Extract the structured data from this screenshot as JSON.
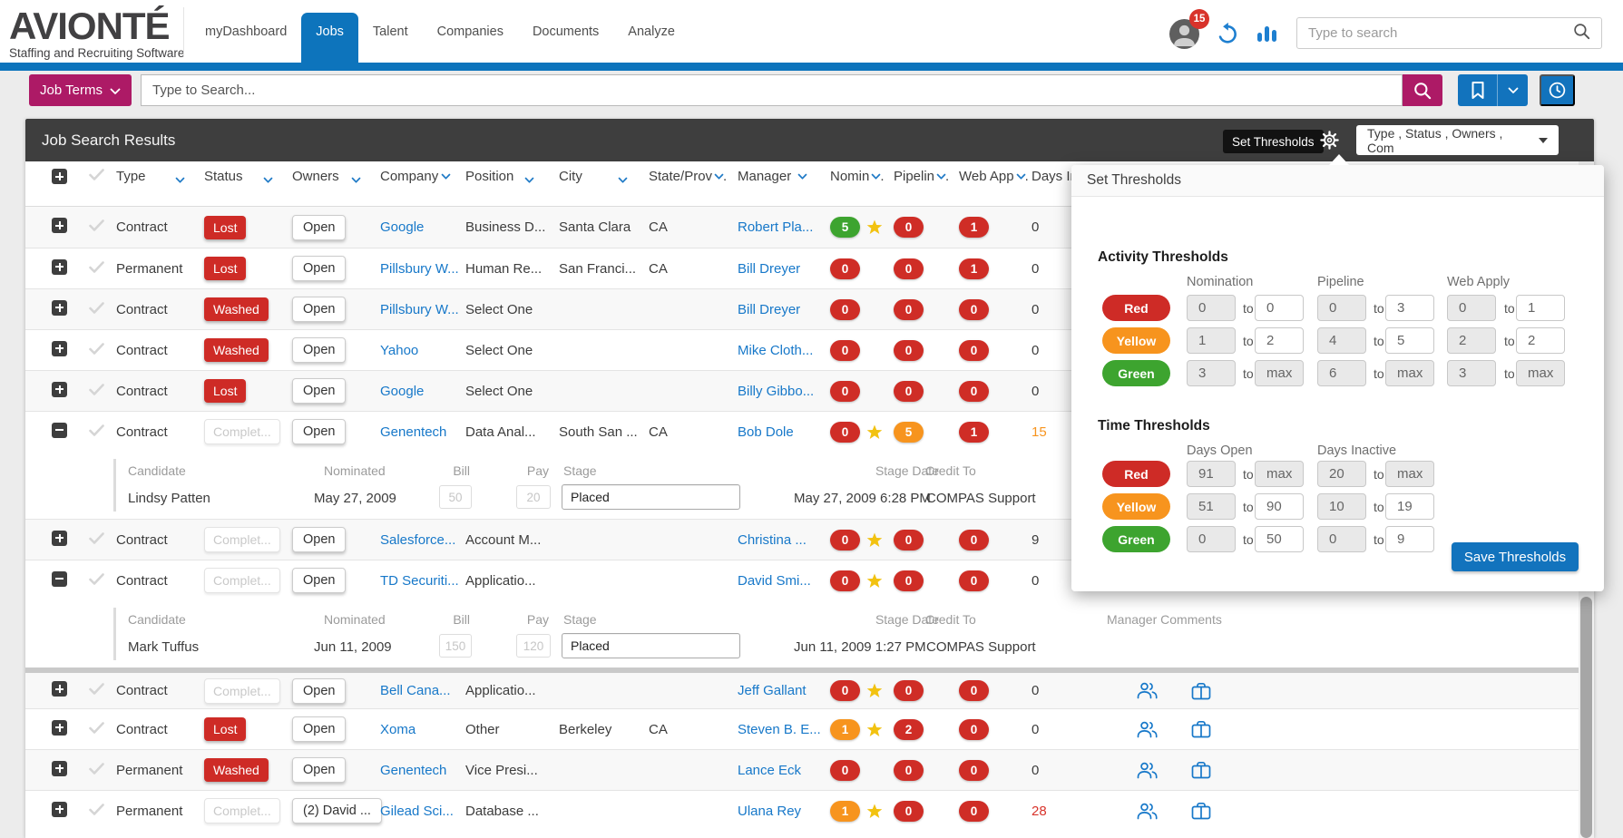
{
  "header": {
    "logo_title": "AVIONTÉ",
    "logo_subtitle": "Staffing and Recruiting Software",
    "nav": [
      {
        "label": "myDashboard",
        "active": false
      },
      {
        "label": "Jobs",
        "active": true
      },
      {
        "label": "Talent",
        "active": false
      },
      {
        "label": "Companies",
        "active": false
      },
      {
        "label": "Documents",
        "active": false
      },
      {
        "label": "Analyze",
        "active": false
      }
    ],
    "notification_count": "15",
    "search_placeholder": "Type to search"
  },
  "toolbar": {
    "job_terms_label": "Job Terms",
    "search_placeholder": "Type to Search..."
  },
  "results": {
    "title": "Job Search Results",
    "tooltip": "Set Thresholds",
    "filter_summary": "Type , Status , Owners , Com",
    "columns": [
      {
        "label": "Type",
        "mode": "far"
      },
      {
        "label": "Status",
        "mode": "far"
      },
      {
        "label": "Owners",
        "mode": "far"
      },
      {
        "label": "Company",
        "mode": "tight"
      },
      {
        "label": "Position",
        "mode": "far"
      },
      {
        "label": "City",
        "mode": "far"
      },
      {
        "label": "State/Prov",
        "mode": "trunc"
      },
      {
        "label": "Manager",
        "mode": "near"
      },
      {
        "label": "Nomin",
        "mode": "trunc"
      },
      {
        "label": "Pipelin",
        "mode": "trunc"
      },
      {
        "label": "Web App",
        "mode": "trunc"
      },
      {
        "label": "Days In",
        "mode": "trunc"
      }
    ],
    "sub_labels": {
      "candidate": "Candidate",
      "nominated": "Nominated",
      "bill": "Bill",
      "pay": "Pay",
      "stage": "Stage",
      "stage_date": "Stage Date",
      "credit_to": "Credit To",
      "manager_comments": "Manager Comments"
    },
    "rows": [
      {
        "expand": "plus",
        "type": "Contract",
        "status": {
          "label": "Lost",
          "variant": "lost"
        },
        "owner": "Open",
        "company": "Google",
        "position": "Business D...",
        "city": "Santa Clara",
        "state": "CA",
        "manager": "Robert Pla...",
        "nomination": {
          "value": "5",
          "color": "green",
          "star": true
        },
        "pipeline": {
          "value": "0",
          "color": "red"
        },
        "web_apply": {
          "value": "1",
          "color": "red"
        },
        "days_in": {
          "value": "0",
          "color": "default"
        },
        "icons": false
      },
      {
        "expand": "plus",
        "type": "Permanent",
        "status": {
          "label": "Lost",
          "variant": "lost"
        },
        "owner": "Open",
        "company": "Pillsbury W...",
        "position": "Human Re...",
        "city": "San Franci...",
        "state": "CA",
        "manager": "Bill Dreyer",
        "nomination": {
          "value": "0",
          "color": "red",
          "star": false
        },
        "pipeline": {
          "value": "0",
          "color": "red"
        },
        "web_apply": {
          "value": "1",
          "color": "red"
        },
        "days_in": {
          "value": "0",
          "color": "default"
        },
        "icons": false
      },
      {
        "expand": "plus",
        "type": "Contract",
        "status": {
          "label": "Washed",
          "variant": "washed"
        },
        "owner": "Open",
        "company": "Pillsbury W...",
        "position": "Select One",
        "city": "",
        "state": "",
        "manager": "Bill Dreyer",
        "nomination": {
          "value": "0",
          "color": "red",
          "star": false
        },
        "pipeline": {
          "value": "0",
          "color": "red"
        },
        "web_apply": {
          "value": "0",
          "color": "red"
        },
        "days_in": {
          "value": "0",
          "color": "default"
        },
        "icons": false
      },
      {
        "expand": "plus",
        "type": "Contract",
        "status": {
          "label": "Washed",
          "variant": "washed"
        },
        "owner": "Open",
        "company": "Yahoo",
        "position": "Select One",
        "city": "",
        "state": "",
        "manager": "Mike Cloth...",
        "nomination": {
          "value": "0",
          "color": "red",
          "star": false
        },
        "pipeline": {
          "value": "0",
          "color": "red"
        },
        "web_apply": {
          "value": "0",
          "color": "red"
        },
        "days_in": {
          "value": "0",
          "color": "default"
        },
        "icons": false
      },
      {
        "expand": "plus",
        "type": "Contract",
        "status": {
          "label": "Lost",
          "variant": "lost"
        },
        "owner": "Open",
        "company": "Google",
        "position": "Select One",
        "city": "",
        "state": "",
        "manager": "Billy Gibbo...",
        "nomination": {
          "value": "0",
          "color": "red",
          "star": false
        },
        "pipeline": {
          "value": "0",
          "color": "red"
        },
        "web_apply": {
          "value": "0",
          "color": "red"
        },
        "days_in": {
          "value": "0",
          "color": "default"
        },
        "icons": false
      },
      {
        "expand": "minus",
        "type": "Contract",
        "status": {
          "label": "Complet...",
          "variant": "completed"
        },
        "owner": "Open",
        "company": "Genentech",
        "position": "Data Anal...",
        "city": "South San ...",
        "state": "CA",
        "manager": "Bob Dole",
        "nomination": {
          "value": "0",
          "color": "red",
          "star": true
        },
        "pipeline": {
          "value": "5",
          "color": "orange"
        },
        "web_apply": {
          "value": "1",
          "color": "red"
        },
        "days_in": {
          "value": "15",
          "color": "orange"
        },
        "icons": false,
        "detail": {
          "candidate": "Lindsy Patten",
          "nominated": "May 27, 2009",
          "bill": "50",
          "pay": "20",
          "stage": "Placed",
          "stage_date": "May 27, 2009 6:28 PM",
          "credit_to": "COMPAS Support"
        }
      },
      {
        "expand": "plus",
        "type": "Contract",
        "status": {
          "label": "Complet...",
          "variant": "completed"
        },
        "owner": "Open",
        "company": "Salesforce...",
        "position": "Account M...",
        "city": "",
        "state": "",
        "manager": "Christina ...",
        "nomination": {
          "value": "0",
          "color": "red",
          "star": true
        },
        "pipeline": {
          "value": "0",
          "color": "red"
        },
        "web_apply": {
          "value": "0",
          "color": "red"
        },
        "days_in": {
          "value": "9",
          "color": "default"
        },
        "icons": false
      },
      {
        "expand": "minus",
        "type": "Contract",
        "status": {
          "label": "Complet...",
          "variant": "completed"
        },
        "owner": "Open",
        "company": "TD Securiti...",
        "position": "Applicatio...",
        "city": "",
        "state": "",
        "manager": "David Smi...",
        "nomination": {
          "value": "0",
          "color": "red",
          "star": true
        },
        "pipeline": {
          "value": "0",
          "color": "red"
        },
        "web_apply": {
          "value": "0",
          "color": "red"
        },
        "days_in": {
          "value": "0",
          "color": "default"
        },
        "icons": false,
        "detail": {
          "candidate": "Mark Tuffus",
          "nominated": "Jun 11, 2009",
          "bill": "150",
          "pay": "120",
          "stage": "Placed",
          "stage_date": "Jun 11, 2009 1:27 PM",
          "credit_to": "COMPAS Support"
        }
      },
      {
        "expand": "plus",
        "type": "Contract",
        "status": {
          "label": "Complet...",
          "variant": "completed"
        },
        "owner": "Open",
        "company": "Bell Cana...",
        "position": "Applicatio...",
        "city": "",
        "state": "",
        "manager": "Jeff Gallant",
        "nomination": {
          "value": "0",
          "color": "red",
          "star": true
        },
        "pipeline": {
          "value": "0",
          "color": "red"
        },
        "web_apply": {
          "value": "0",
          "color": "red"
        },
        "days_in": {
          "value": "0",
          "color": "default"
        },
        "icons": true,
        "thick_top": true
      },
      {
        "expand": "plus",
        "type": "Contract",
        "status": {
          "label": "Lost",
          "variant": "lost"
        },
        "owner": "Open",
        "company": "Xoma",
        "position": "Other",
        "city": "Berkeley",
        "state": "CA",
        "manager": "Steven B. E...",
        "nomination": {
          "value": "1",
          "color": "orange",
          "star": true
        },
        "pipeline": {
          "value": "2",
          "color": "red"
        },
        "web_apply": {
          "value": "0",
          "color": "red"
        },
        "days_in": {
          "value": "0",
          "color": "default"
        },
        "icons": true
      },
      {
        "expand": "plus",
        "type": "Permanent",
        "status": {
          "label": "Washed",
          "variant": "washed"
        },
        "owner": "Open",
        "company": "Genentech",
        "position": "Vice Presi...",
        "city": "",
        "state": "",
        "manager": "Lance Eck",
        "nomination": {
          "value": "0",
          "color": "red",
          "star": false
        },
        "pipeline": {
          "value": "0",
          "color": "red"
        },
        "web_apply": {
          "value": "0",
          "color": "red"
        },
        "days_in": {
          "value": "0",
          "color": "default"
        },
        "icons": true
      },
      {
        "expand": "plus",
        "type": "Permanent",
        "status": {
          "label": "Complet...",
          "variant": "completed"
        },
        "owner": "(2) David ...",
        "company": "Gilead Sci...",
        "position": "Database ...",
        "city": "",
        "state": "",
        "manager": "Ulana Rey",
        "nomination": {
          "value": "1",
          "color": "orange",
          "star": true
        },
        "pipeline": {
          "value": "0",
          "color": "red"
        },
        "web_apply": {
          "value": "0",
          "color": "red"
        },
        "days_in": {
          "value": "28",
          "color": "red"
        },
        "icons": true
      }
    ]
  },
  "thresholds_panel": {
    "title": "Set Thresholds",
    "save_label": "Save Thresholds",
    "sections": [
      {
        "heading": "Activity Thresholds",
        "columns": [
          "Nomination",
          "Pipeline",
          "Web Apply"
        ],
        "rows": [
          {
            "label": "Red",
            "ranges": [
              [
                "0",
                "0"
              ],
              [
                "0",
                "3"
              ],
              [
                "0",
                "1"
              ]
            ]
          },
          {
            "label": "Yellow",
            "ranges": [
              [
                "1",
                "2"
              ],
              [
                "4",
                "5"
              ],
              [
                "2",
                "2"
              ]
            ]
          },
          {
            "label": "Green",
            "ranges": [
              [
                "3",
                "max"
              ],
              [
                "6",
                "max"
              ],
              [
                "3",
                "max"
              ]
            ]
          }
        ]
      },
      {
        "heading": "Time Thresholds",
        "columns": [
          "Days Open",
          "Days Inactive"
        ],
        "rows": [
          {
            "label": "Red",
            "ranges": [
              [
                "91",
                "max"
              ],
              [
                "20",
                "max"
              ]
            ]
          },
          {
            "label": "Yellow",
            "ranges": [
              [
                "51",
                "90"
              ],
              [
                "10",
                "19"
              ]
            ]
          },
          {
            "label": "Green",
            "ranges": [
              [
                "0",
                "50"
              ],
              [
                "0",
                "9"
              ]
            ]
          }
        ]
      }
    ]
  },
  "colors": {
    "accent_blue": "#0d74bc",
    "button_blue": "#1273bd",
    "brand_magenta": "#ad1a66",
    "badge_red": "#cf2d26",
    "badge_green": "#3da42f",
    "badge_orange": "#f7941e",
    "star_gold": "#f2c210",
    "link_blue": "#1778c9",
    "dark_bar": "#3e3e3e"
  }
}
